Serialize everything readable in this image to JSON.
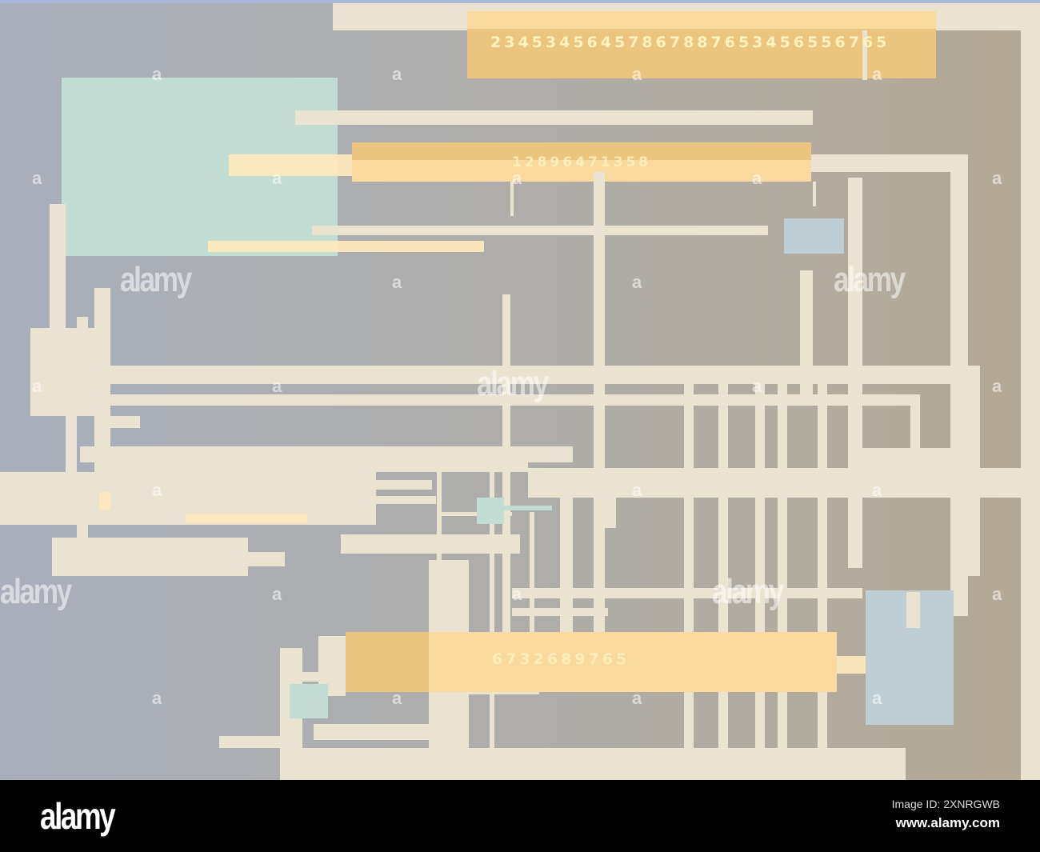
{
  "artwork": {
    "number_strings": {
      "top": "23453456457867887653456556765",
      "middle": "12896471358",
      "bottom": "6732689765"
    },
    "colors": {
      "cream": "#ebe3d2",
      "orange": "#ebc47f",
      "light_orange": "#fcdca3",
      "teal": "#c2dcd3",
      "blue_grey": "#bfced4",
      "background_left": "#a9aebb",
      "background_right": "#b4a895"
    }
  },
  "watermark": {
    "text": "alamy",
    "icon": "alamy-a-icon"
  },
  "footer": {
    "logo": "alamy",
    "image_id": "Image ID: 2XNRGWB",
    "url": "www.alamy.com"
  }
}
